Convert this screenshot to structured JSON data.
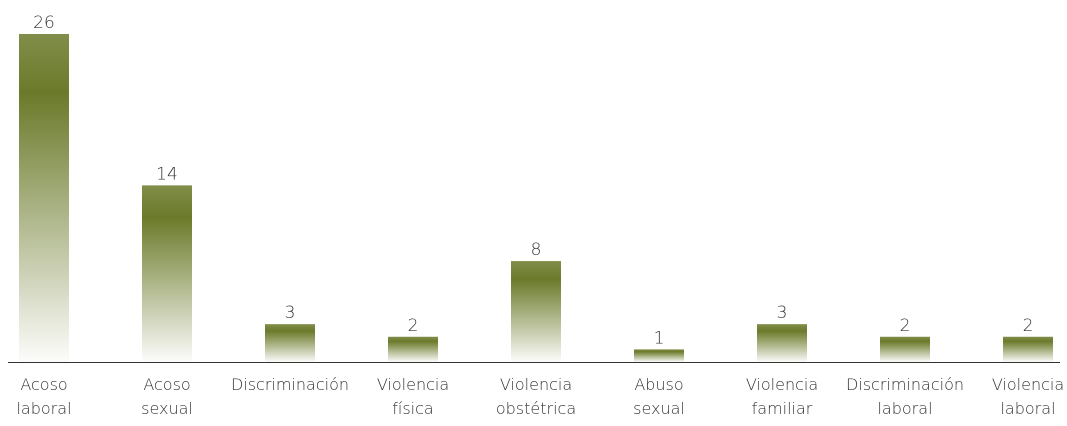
{
  "chart_data": {
    "type": "bar",
    "categories": [
      [
        "Acoso",
        "laboral"
      ],
      [
        "Acoso",
        "sexual"
      ],
      [
        "Discriminación"
      ],
      [
        "Violencia",
        "física"
      ],
      [
        "Violencia",
        "obstétrica"
      ],
      [
        "Abuso",
        "sexual"
      ],
      [
        "Violencia",
        "familiar"
      ],
      [
        "Discriminación",
        "laboral"
      ],
      [
        "Violencia",
        "laboral"
      ]
    ],
    "values": [
      26,
      14,
      3,
      2,
      8,
      1,
      3,
      2,
      2
    ],
    "ylim": [
      0,
      26
    ],
    "grid": false,
    "legend": "none",
    "bar_color": "#6b7a2a",
    "axis_color": "#333333"
  }
}
